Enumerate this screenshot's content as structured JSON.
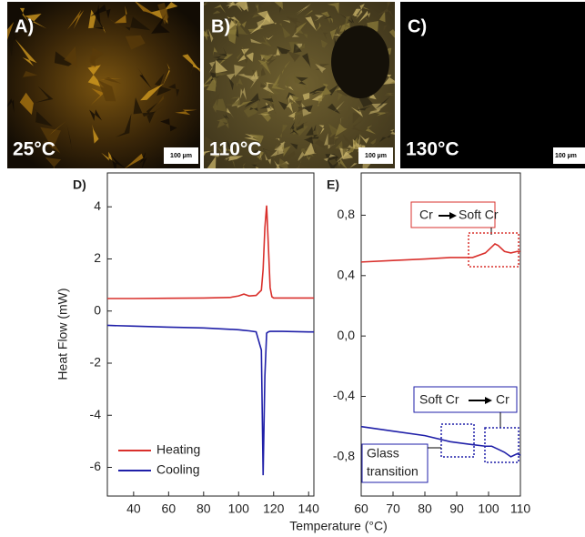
{
  "panels": [
    {
      "label": "A)",
      "temperature": "25°C",
      "scale": "100 µm"
    },
    {
      "label": "B)",
      "temperature": "110°C",
      "scale": "100 µm"
    },
    {
      "label": "C)",
      "temperature": "130°C",
      "scale": "100 µm"
    }
  ],
  "chart_data": [
    {
      "type": "line",
      "title": "D)",
      "ylabel": "Heat Flow (mW)",
      "xlabel": "Temperature (°C)",
      "x": [
        25,
        40,
        60,
        80,
        95,
        100,
        103,
        106,
        110,
        113,
        114,
        115,
        116,
        117,
        118,
        119,
        120,
        125,
        140,
        143
      ],
      "series": [
        {
          "name": "Heating",
          "color": "#d9302c",
          "values": [
            0.48,
            0.48,
            0.49,
            0.5,
            0.52,
            0.58,
            0.65,
            0.58,
            0.6,
            0.8,
            1.6,
            3.2,
            4.05,
            2.5,
            0.9,
            0.55,
            0.5,
            0.5,
            0.5,
            0.5
          ]
        },
        {
          "name": "Cooling",
          "color": "#1f1fa8",
          "values": [
            -0.55,
            -0.58,
            -0.62,
            -0.65,
            -0.7,
            -0.72,
            -0.74,
            -0.76,
            -0.8,
            -1.5,
            -6.3,
            -2.5,
            -0.85,
            -0.8,
            -0.78,
            -0.78,
            -0.78,
            -0.78,
            -0.8,
            -0.8
          ]
        }
      ],
      "xlim": [
        25,
        143
      ],
      "xticks": [
        40,
        60,
        80,
        100,
        120,
        140
      ],
      "ylim": [
        -7.1,
        5.3
      ],
      "yticks": [
        -6,
        -4,
        -2,
        0,
        2,
        4
      ],
      "legend": "lower left"
    },
    {
      "type": "line",
      "title": "E)",
      "x": [
        60,
        70,
        80,
        88,
        95,
        99,
        101,
        102,
        103,
        105,
        107,
        109,
        110
      ],
      "series": [
        {
          "name": "Heating",
          "color": "#d9302c",
          "values": [
            0.49,
            0.5,
            0.51,
            0.52,
            0.52,
            0.55,
            0.59,
            0.61,
            0.6,
            0.56,
            0.55,
            0.56,
            0.56
          ]
        },
        {
          "name": "Cooling",
          "color": "#1f1fa8",
          "values": [
            -0.6,
            -0.63,
            -0.66,
            -0.7,
            -0.72,
            -0.73,
            -0.73,
            -0.74,
            -0.75,
            -0.77,
            -0.8,
            -0.78,
            -0.79
          ]
        }
      ],
      "xlim": [
        60,
        110
      ],
      "xticks": [
        60,
        70,
        80,
        90,
        100,
        110
      ],
      "ylim": [
        -1.06,
        1.08
      ],
      "yticks": [
        {
          "value": -0.8,
          "label": "-0,8"
        },
        {
          "value": -0.4,
          "label": "-0,4"
        },
        {
          "value": 0,
          "label": "0,0"
        },
        {
          "value": 0.4,
          "label": "0,4"
        },
        {
          "value": 0.8,
          "label": "0,8"
        }
      ],
      "annotations": [
        {
          "from": "Cr",
          "to": "Soft Cr"
        },
        {
          "from": "Soft Cr",
          "to": "Cr"
        },
        {
          "text": [
            "Glass",
            "transition"
          ]
        }
      ]
    }
  ]
}
